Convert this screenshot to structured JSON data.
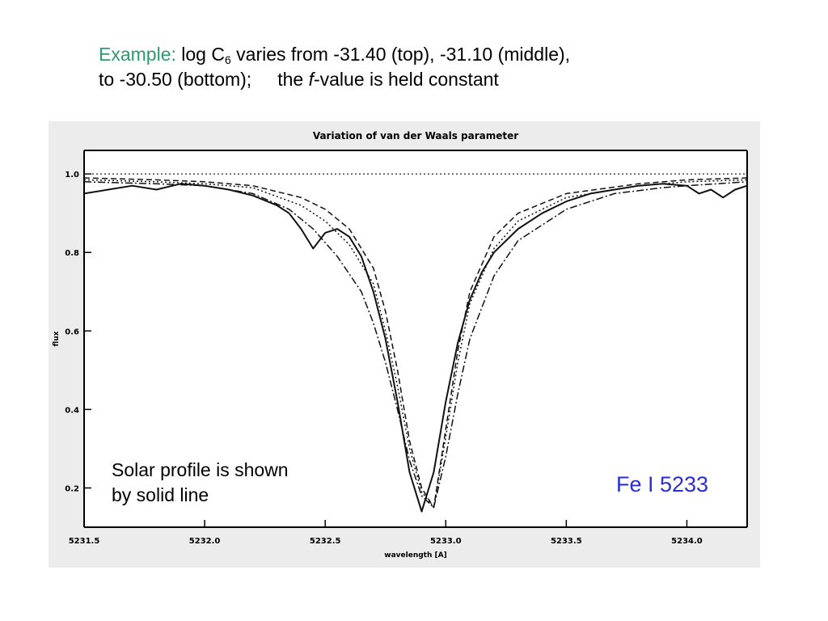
{
  "caption": {
    "lead": "Example:",
    "text1": " log C",
    "sub": "6",
    "text2": " varies from -31.40 (top), -31.10 (middle),",
    "line2a": "to -30.50 (bottom);",
    "line2b": "the ",
    "italic": "f",
    "line2c": "-value is held constant"
  },
  "note": {
    "line1": "Solar profile is shown",
    "line2": "by solid line"
  },
  "element_label": "Fe I 5233",
  "chart_data": {
    "type": "line",
    "title": "Variation of van der Waals parameter",
    "xlabel": "wavelength [A]",
    "ylabel": "flux",
    "xlim": [
      5231.5,
      5234.25
    ],
    "ylim": [
      0.1,
      1.06
    ],
    "x_ticks": [
      "5231.5",
      "5232.0",
      "5232.5",
      "5233.0",
      "5233.5",
      "5234.0"
    ],
    "y_ticks": [
      "1.0",
      "0.8",
      "0.6",
      "0.4",
      "0.2"
    ],
    "continuum": 1.0,
    "series": [
      {
        "style": "solid",
        "x": [
          5231.5,
          5231.6,
          5231.7,
          5231.8,
          5231.9,
          5232.0,
          5232.1,
          5232.2,
          5232.3,
          5232.35,
          5232.4,
          5232.45,
          5232.5,
          5232.55,
          5232.6,
          5232.65,
          5232.7,
          5232.75,
          5232.8,
          5232.85,
          5232.9,
          5232.95,
          5233.0,
          5233.05,
          5233.1,
          5233.15,
          5233.2,
          5233.3,
          5233.4,
          5233.5,
          5233.6,
          5233.7,
          5233.8,
          5233.9,
          5234.0,
          5234.05,
          5234.1,
          5234.15,
          5234.2,
          5234.25
        ],
        "y": [
          0.95,
          0.96,
          0.97,
          0.96,
          0.975,
          0.97,
          0.96,
          0.945,
          0.92,
          0.9,
          0.86,
          0.81,
          0.85,
          0.86,
          0.84,
          0.79,
          0.7,
          0.58,
          0.42,
          0.24,
          0.14,
          0.24,
          0.42,
          0.57,
          0.68,
          0.75,
          0.8,
          0.86,
          0.9,
          0.93,
          0.95,
          0.96,
          0.97,
          0.975,
          0.97,
          0.95,
          0.96,
          0.94,
          0.96,
          0.97
        ]
      },
      {
        "style": "dashed",
        "x": [
          5231.5,
          5231.8,
          5232.0,
          5232.2,
          5232.4,
          5232.5,
          5232.6,
          5232.7,
          5232.75,
          5232.8,
          5232.85,
          5232.9,
          5232.95,
          5233.0,
          5233.05,
          5233.1,
          5233.2,
          5233.3,
          5233.5,
          5233.8,
          5234.0,
          5234.25
        ],
        "y": [
          0.99,
          0.985,
          0.98,
          0.97,
          0.94,
          0.91,
          0.86,
          0.76,
          0.65,
          0.5,
          0.32,
          0.2,
          0.15,
          0.35,
          0.55,
          0.7,
          0.84,
          0.9,
          0.95,
          0.975,
          0.985,
          0.99
        ]
      },
      {
        "style": "dotted",
        "x": [
          5231.5,
          5231.8,
          5232.0,
          5232.2,
          5232.4,
          5232.5,
          5232.6,
          5232.7,
          5232.75,
          5232.8,
          5232.85,
          5232.9,
          5232.95,
          5233.0,
          5233.05,
          5233.1,
          5233.2,
          5233.3,
          5233.5,
          5233.8,
          5234.0,
          5234.25
        ],
        "y": [
          0.985,
          0.98,
          0.975,
          0.965,
          0.92,
          0.88,
          0.82,
          0.72,
          0.6,
          0.46,
          0.3,
          0.19,
          0.15,
          0.33,
          0.52,
          0.67,
          0.81,
          0.88,
          0.94,
          0.97,
          0.98,
          0.985
        ]
      },
      {
        "style": "dashdot",
        "x": [
          5231.5,
          5231.8,
          5232.0,
          5232.2,
          5232.35,
          5232.45,
          5232.55,
          5232.65,
          5232.7,
          5232.75,
          5232.8,
          5232.85,
          5232.9,
          5232.95,
          5233.0,
          5233.05,
          5233.1,
          5233.2,
          5233.3,
          5233.5,
          5233.7,
          5233.9,
          5234.0,
          5234.25
        ],
        "y": [
          0.98,
          0.975,
          0.97,
          0.95,
          0.91,
          0.86,
          0.79,
          0.7,
          0.62,
          0.52,
          0.4,
          0.27,
          0.18,
          0.15,
          0.28,
          0.44,
          0.58,
          0.74,
          0.83,
          0.91,
          0.95,
          0.965,
          0.97,
          0.98
        ]
      }
    ]
  }
}
